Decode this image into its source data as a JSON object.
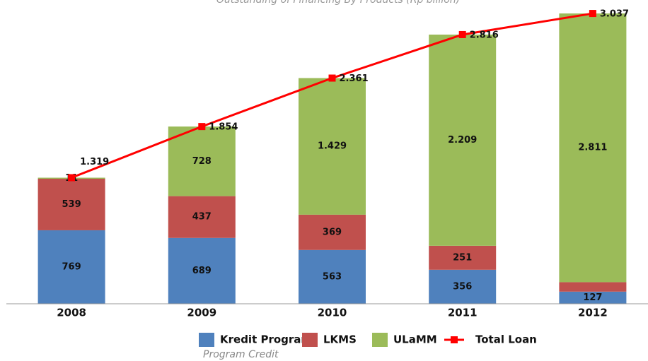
{
  "chart_data": {
    "type": "bar",
    "stacked": true,
    "title": "Outstanding of Financing By Products (Rp billion)",
    "categories": [
      "2008",
      "2009",
      "2010",
      "2011",
      "2012"
    ],
    "ylim": [
      0,
      3200
    ],
    "series": [
      {
        "name": "Kredit Program",
        "color": "#4f81bd",
        "values": [
          769,
          689,
          563,
          356,
          127
        ]
      },
      {
        "name": "LKMS",
        "color": "#c0504d",
        "values": [
          539,
          437,
          369,
          251,
          99
        ]
      },
      {
        "name": "ULaMM",
        "color": "#9bbb59",
        "values": [
          11,
          728,
          1429,
          2209,
          2811
        ],
        "value_labels": [
          "11",
          "728",
          "1.429",
          "2.209",
          "2.811"
        ]
      },
      {
        "name": "Total Loan",
        "color": "#ff0000",
        "type": "line",
        "values": [
          1319,
          1854,
          2361,
          2816,
          3037
        ],
        "value_labels": [
          "1.319",
          "1.854",
          "2.361",
          "2.816",
          "3.037"
        ]
      }
    ],
    "legend_note": "Program Credit",
    "legend": "bottom"
  }
}
